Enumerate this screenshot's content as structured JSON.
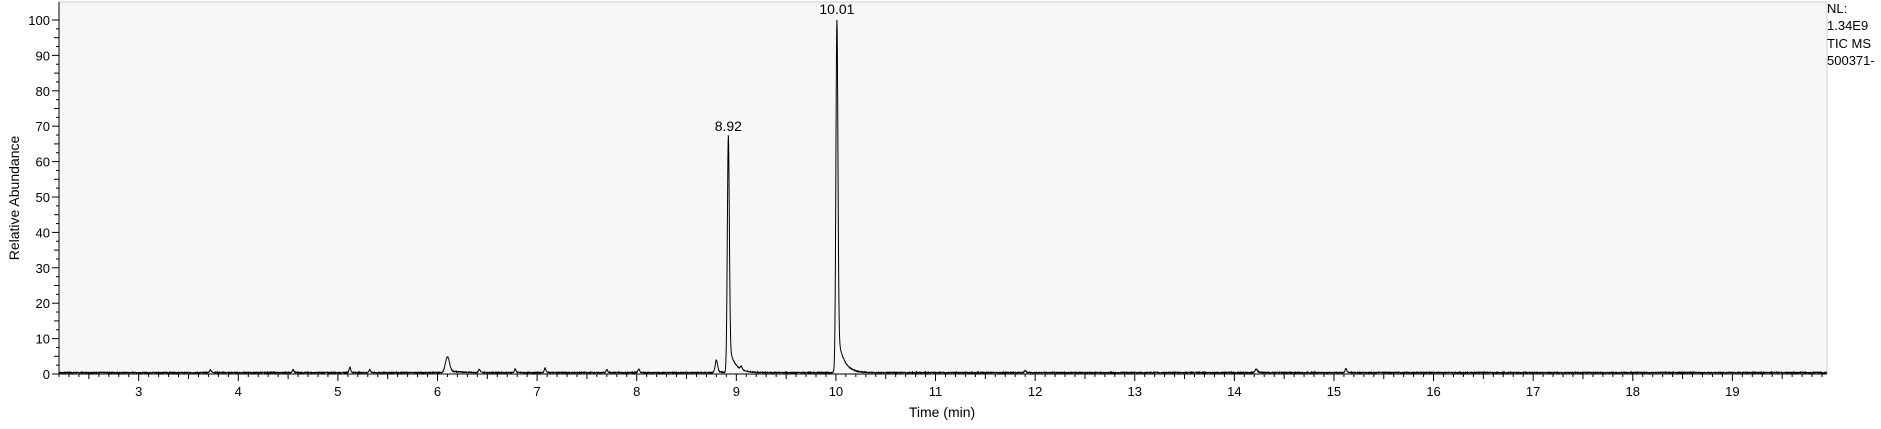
{
  "info": {
    "nl_label": "NL:",
    "nl_value": "1.34E9",
    "scan_filter": "TIC  MS",
    "file_name": "500371-"
  },
  "chart_data": {
    "type": "line",
    "title": "",
    "xlabel": "Time (min)",
    "ylabel": "Relative Abundance",
    "xlim": [
      2.2,
      19.95
    ],
    "ylim": [
      0,
      100
    ],
    "x_ticks": [
      3,
      4,
      5,
      6,
      7,
      8,
      9,
      10,
      11,
      12,
      13,
      14,
      15,
      16,
      17,
      18,
      19
    ],
    "y_ticks": [
      0,
      10,
      20,
      30,
      40,
      50,
      60,
      70,
      80,
      90,
      100
    ],
    "grid": false,
    "colors": {
      "plot_background": "#f7f7f7",
      "trace": "#000000",
      "axis": "#000000"
    },
    "baseline": 0.4,
    "peaks": [
      {
        "rt": 6.1,
        "height": 4.5
      },
      {
        "rt": 8.8,
        "height": 3.5
      },
      {
        "rt": 8.92,
        "height": 67,
        "label": "8.92"
      },
      {
        "rt": 10.01,
        "height": 100,
        "label": "10.01"
      },
      {
        "rt": 14.22,
        "height": 1.0
      }
    ],
    "minor_peaks": [
      {
        "rt": 3.72,
        "height": 0.8
      },
      {
        "rt": 4.55,
        "height": 0.8
      },
      {
        "rt": 5.12,
        "height": 1.5
      },
      {
        "rt": 5.32,
        "height": 0.8
      },
      {
        "rt": 6.42,
        "height": 0.9
      },
      {
        "rt": 6.78,
        "height": 1.0
      },
      {
        "rt": 7.08,
        "height": 1.3
      },
      {
        "rt": 7.7,
        "height": 0.8
      },
      {
        "rt": 8.02,
        "height": 1.0
      },
      {
        "rt": 9.05,
        "height": 1.0
      },
      {
        "rt": 11.9,
        "height": 0.6
      },
      {
        "rt": 15.12,
        "height": 1.2
      }
    ]
  }
}
